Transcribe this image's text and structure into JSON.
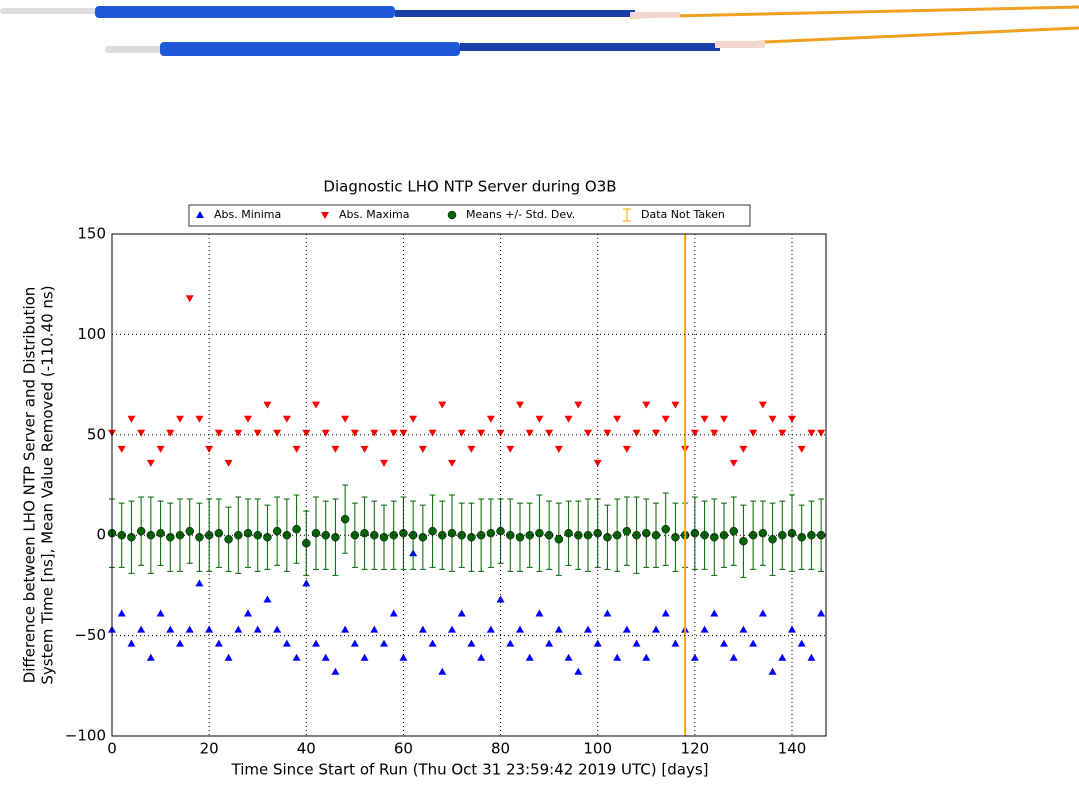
{
  "chart_data": {
    "type": "scatter",
    "title": "Diagnostic LHO NTP Server during O3B",
    "xlabel": "Time Since Start of Run (Thu Oct 31 23:59:42 2019 UTC) [days]",
    "ylabel": [
      "Difference between LHO NTP Server and Distribution",
      "System Time [ns], Mean Value Removed (-110.40 ns)"
    ],
    "xlim": [
      0,
      147
    ],
    "ylim": [
      -100,
      150
    ],
    "xticks": [
      0,
      20,
      40,
      60,
      80,
      100,
      120,
      140
    ],
    "yticks": [
      {
        "value": -100,
        "label": "−100"
      },
      {
        "value": -50,
        "label": "−50"
      },
      0,
      50,
      100,
      150
    ],
    "grid": true,
    "x": [
      0,
      2,
      4,
      6,
      8,
      10,
      12,
      14,
      16,
      18,
      20,
      22,
      24,
      26,
      28,
      30,
      32,
      34,
      36,
      38,
      40,
      42,
      44,
      46,
      48,
      50,
      52,
      54,
      56,
      58,
      60,
      62,
      64,
      66,
      68,
      70,
      72,
      74,
      76,
      78,
      80,
      82,
      84,
      86,
      88,
      90,
      92,
      94,
      96,
      98,
      100,
      102,
      104,
      106,
      108,
      110,
      112,
      114,
      116,
      118,
      120,
      122,
      124,
      126,
      128,
      130,
      132,
      134,
      136,
      138,
      140,
      142,
      144,
      146
    ],
    "series": [
      {
        "name": "Abs. Minima",
        "color": "#0000ff",
        "marker": "triangle-up",
        "values": [
          -47,
          -39,
          -54,
          -47,
          -61,
          -39,
          -47,
          -54,
          -47,
          -24,
          -47,
          -54,
          -61,
          -47,
          -39,
          -47,
          -32,
          -47,
          -54,
          -61,
          -24,
          -54,
          -61,
          -68,
          -47,
          -54,
          -61,
          -47,
          -54,
          -39,
          -61,
          -9,
          -47,
          -54,
          -68,
          -47,
          -39,
          -54,
          -61,
          -47,
          -32,
          -54,
          -47,
          -61,
          -39,
          -54,
          -47,
          -61,
          -68,
          -47,
          -54,
          -39,
          -61,
          -47,
          -54,
          -61,
          -47,
          -39,
          -54,
          -47,
          -61,
          -47,
          -39,
          -54,
          -61,
          -47,
          -54,
          -39,
          -68,
          -61,
          -47,
          -54,
          -61,
          -39
        ]
      },
      {
        "name": "Abs. Maxima",
        "color": "#ff0000",
        "marker": "triangle-down",
        "values": [
          51,
          43,
          58,
          51,
          36,
          43,
          51,
          58,
          118,
          58,
          43,
          51,
          36,
          51,
          58,
          51,
          65,
          51,
          58,
          43,
          51,
          65,
          51,
          43,
          58,
          51,
          43,
          51,
          36,
          51,
          51,
          58,
          43,
          51,
          65,
          36,
          51,
          43,
          51,
          58,
          51,
          43,
          65,
          51,
          58,
          51,
          43,
          58,
          65,
          51,
          36,
          51,
          58,
          43,
          51,
          65,
          51,
          58,
          65,
          43,
          51,
          58,
          51,
          58,
          36,
          43,
          51,
          65,
          58,
          51,
          58,
          43,
          51,
          51
        ]
      },
      {
        "name": "Means +/- Std. Dev.",
        "color": "#006400",
        "marker": "circle",
        "values": [
          1,
          0,
          -1,
          2,
          0,
          1,
          -1,
          0,
          2,
          -1,
          0,
          1,
          -2,
          0,
          1,
          0,
          -1,
          2,
          0,
          3,
          -4,
          1,
          0,
          -1,
          8,
          0,
          1,
          0,
          -1,
          0,
          1,
          0,
          -1,
          2,
          0,
          1,
          0,
          -1,
          0,
          1,
          2,
          0,
          -1,
          0,
          1,
          0,
          -2,
          1,
          0,
          0,
          1,
          -1,
          0,
          2,
          0,
          1,
          0,
          3,
          -1,
          0,
          1,
          0,
          -1,
          0,
          2,
          -3,
          0,
          1,
          -2,
          0,
          1,
          -1,
          0,
          0
        ],
        "errors": [
          17,
          16,
          18,
          17,
          19,
          16,
          17,
          18,
          16,
          17,
          18,
          17,
          16,
          19,
          17,
          18,
          16,
          17,
          18,
          17,
          16,
          18,
          17,
          19,
          17,
          16,
          18,
          17,
          16,
          17,
          18,
          17,
          16,
          18,
          17,
          19,
          16,
          17,
          18,
          17,
          16,
          18,
          17,
          16,
          19,
          17,
          18,
          16,
          17,
          18,
          17,
          16,
          18,
          17,
          19,
          17,
          16,
          18,
          17,
          16,
          18,
          17,
          19,
          16,
          17,
          18,
          17,
          16,
          18,
          17,
          19,
          16,
          17,
          18
        ]
      },
      {
        "name": "Data Not Taken",
        "color": "#ffa500",
        "marker": "vline",
        "values": [
          118
        ]
      }
    ]
  }
}
